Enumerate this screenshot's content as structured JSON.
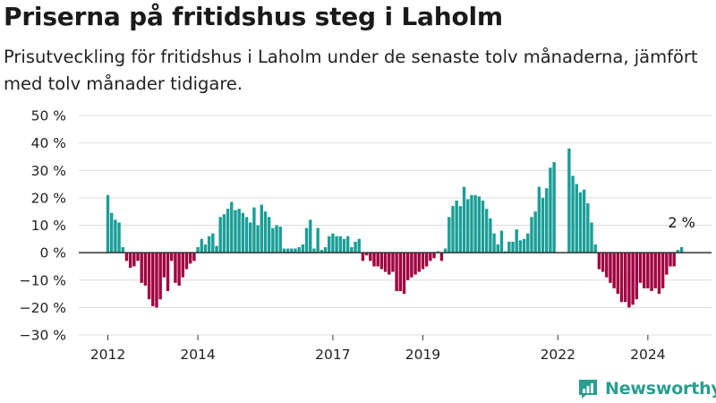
{
  "header": {
    "title": "Priserna på fritidshus steg i Laholm",
    "subtitle": "Prisutveckling för fritidshus i Laholm under de senaste tolv månaderna, jämfört med tolv månader tidigare."
  },
  "brand": {
    "name": "Newsworthy",
    "logo_icon": "newsworthy-logo-icon",
    "color": "#2a9d8f"
  },
  "chart_data": {
    "type": "bar",
    "title": "Priserna på fritidshus steg i Laholm",
    "ylim": [
      -30,
      50
    ],
    "y_ticks": [
      -30,
      -20,
      -10,
      0,
      10,
      20,
      30,
      40,
      50
    ],
    "y_tick_labels": [
      "−30 %",
      "−20 %",
      "−10 %",
      "0 %",
      "10 %",
      "20 %",
      "30 %",
      "40 %",
      "50 %"
    ],
    "x_tick_labels": [
      {
        "label": "2012",
        "year": 2012
      },
      {
        "label": "2014",
        "year": 2014
      },
      {
        "label": "2017",
        "year": 2017
      },
      {
        "label": "2019",
        "year": 2019
      },
      {
        "label": "2022",
        "year": 2022
      },
      {
        "label": "2024",
        "year": 2024
      }
    ],
    "x_start_year": 2012,
    "grid": true,
    "colors": {
      "positive": "#1a9e96",
      "negative": "#a0003f",
      "grid": "#dcdcdc",
      "axis": "#333333"
    },
    "annotation": {
      "text": "2 %"
    },
    "series": [
      {
        "values": [
          21,
          14.5,
          12,
          11,
          2,
          -3,
          -5.5,
          -5,
          -3,
          -11,
          -12,
          -17,
          -19.5,
          -20,
          -17,
          -9,
          -14,
          -3,
          -11,
          -12,
          -9,
          -6,
          -4,
          -3,
          2,
          5,
          3,
          6,
          7,
          2.5,
          13,
          14,
          16,
          18.5,
          15.5,
          16,
          14.5,
          13,
          11,
          16.5,
          10,
          17.5,
          15,
          13,
          9,
          10,
          9.5,
          1.5,
          1.5,
          1.5,
          1.5,
          2,
          3,
          9,
          12,
          1.5,
          9,
          1,
          2,
          6,
          7,
          6,
          6,
          5,
          6,
          2,
          4,
          5,
          -3,
          -1,
          -3,
          -5,
          -5,
          -6,
          -7,
          -8,
          -7,
          -14,
          -14,
          -15,
          -10,
          -9,
          -8,
          -7,
          -6,
          -5,
          -3,
          -2,
          0.5,
          -3,
          1.5,
          13,
          17,
          19,
          17,
          24,
          19.5,
          21,
          21,
          20.5,
          19,
          16,
          12.5,
          7,
          3,
          8,
          0.5,
          4,
          4,
          8.5,
          4.5,
          5,
          7,
          13,
          15,
          24,
          20,
          23.5,
          31,
          33,
          null,
          null,
          null,
          38,
          28,
          25,
          22,
          23,
          18,
          11,
          3,
          -6,
          -7,
          -9,
          -11,
          -13,
          -15,
          -18,
          -18,
          -20,
          -19,
          -17,
          -11,
          -13,
          -13,
          -14,
          -13,
          -15,
          -13,
          -8,
          -5,
          -5,
          1,
          2
        ]
      }
    ]
  }
}
